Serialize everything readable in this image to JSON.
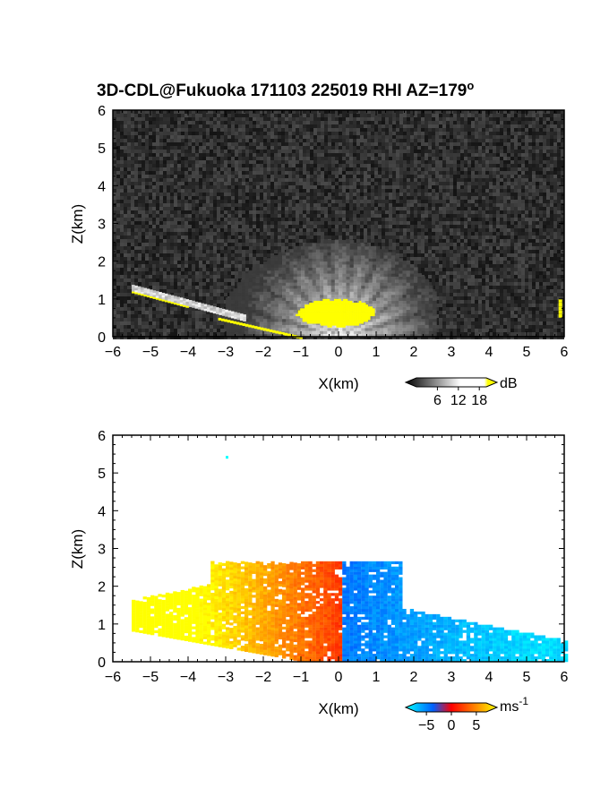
{
  "title": {
    "main": "3D-CDL@Fukuoka 171103 225019 RHI AZ=179",
    "sup": "o"
  },
  "chart_data": [
    {
      "type": "heatmap",
      "quantity": "backscatter intensity",
      "xlabel": "X(km)",
      "ylabel": "Z(km)",
      "xlim": [
        -6,
        6
      ],
      "ylim": [
        0,
        6
      ],
      "xticks": [
        "-6",
        "-5",
        "-4",
        "-3",
        "-2",
        "-1",
        "0",
        "1",
        "2",
        "3",
        "4",
        "5",
        "6"
      ],
      "yticks": [
        "0",
        "1",
        "2",
        "3",
        "4",
        "5",
        "6"
      ],
      "colorbar": {
        "unit": "dB",
        "ticks": [
          "6",
          "12",
          "18"
        ],
        "tick_values": [
          6,
          12,
          18
        ],
        "range": [
          0,
          20
        ],
        "colors": [
          "#000000",
          "#ffffff",
          "#ffff00"
        ]
      },
      "features": {
        "fan_top_km": 2.5,
        "fan_xlim": [
          -3.0,
          2.6
        ],
        "saturated_core": {
          "x": [
            -1.2,
            1.0
          ],
          "z": [
            0.2,
            1.0
          ]
        },
        "ground_level_km": 0.0,
        "terrain_slope_left": {
          "x": -4.2,
          "z": 0.85
        }
      }
    },
    {
      "type": "heatmap",
      "quantity": "radial velocity",
      "xlabel": "X(km)",
      "ylabel": "Z(km)",
      "xlim": [
        -6,
        6
      ],
      "ylim": [
        0,
        6
      ],
      "xticks": [
        "-6",
        "-5",
        "-4",
        "-3",
        "-2",
        "-1",
        "0",
        "1",
        "2",
        "3",
        "4",
        "5",
        "6"
      ],
      "yticks": [
        "0",
        "1",
        "2",
        "3",
        "4",
        "5",
        "6"
      ],
      "colorbar": {
        "unit": "ms",
        "unit_sup": "-1",
        "ticks": [
          "-5",
          "0",
          "5"
        ],
        "tick_values": [
          -5,
          0,
          5
        ],
        "range": [
          -7,
          7
        ],
        "colors": [
          "#00ffff",
          "#0000ff",
          "#ff0000",
          "#ffff00"
        ]
      },
      "features": {
        "echo_top_km": 2.6,
        "positive_velocity_side_x": [
          -5.5,
          0.0
        ],
        "negative_velocity_side_x": [
          0.0,
          6.0
        ],
        "isolated_point": {
          "x": -3.0,
          "z": 5.45
        }
      }
    }
  ]
}
